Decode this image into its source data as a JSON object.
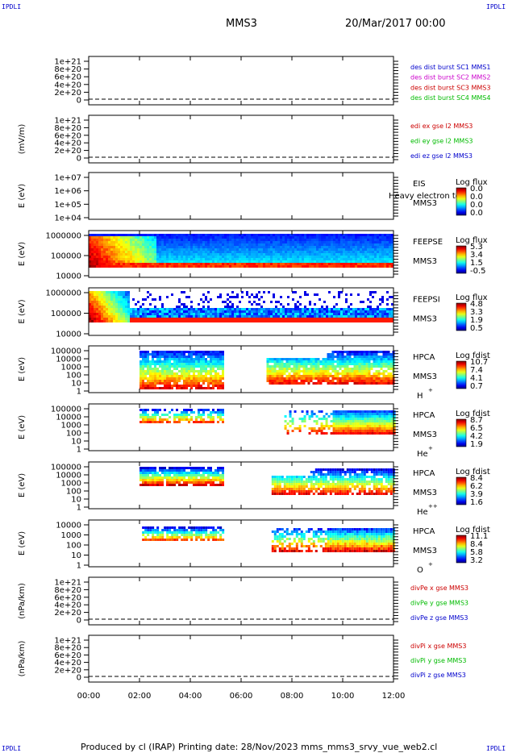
{
  "corner_label": "IPDLI",
  "header": {
    "spacecraft": "MMS3",
    "datetime": "20/Mar/2017 00:00"
  },
  "footer": {
    "text": "Produced by cl (IRAP)   Printing date: 28/Nov/2023   mms_mms3_srvy_vue_web2.cl"
  },
  "chart_data": {
    "type": "heatmap",
    "x_ticks": [
      "00:00",
      "02:00",
      "04:00",
      "06:00",
      "08:00",
      "10:00",
      "12:00"
    ],
    "xlim_hours": [
      0,
      12
    ],
    "panels": [
      {
        "kind": "line",
        "ylabel": "",
        "yticks": [
          "1e+21",
          "8e+20",
          "6e+20",
          "4e+20",
          "2e+20",
          "0"
        ],
        "legend": [
          {
            "text": "des dist burst SC1 MMS1",
            "color": "#0000cc"
          },
          {
            "text": "des dist burst SC2 MMS2",
            "color": "#cc00cc"
          },
          {
            "text": "des dist burst SC3 MMS3",
            "color": "#cc0000"
          },
          {
            "text": "des dist burst SC4 MMS4",
            "color": "#00bb00"
          }
        ]
      },
      {
        "kind": "line",
        "ylabel": "(mV/m)",
        "yticks": [
          "1e+21",
          "8e+20",
          "6e+20",
          "4e+20",
          "2e+20",
          "0"
        ],
        "legend": [
          {
            "text": "edi ex gse l2 MMS3",
            "color": "#cc0000"
          },
          {
            "text": "edi ey gse l2 MMS3",
            "color": "#00bb00"
          },
          {
            "text": "edi ez gse l2 MMS3",
            "color": "#0000cc"
          }
        ]
      },
      {
        "kind": "spec",
        "ylabel": "E (eV)",
        "yticks": [
          "1e+07",
          "1e+06",
          "1e+05",
          "1e+04"
        ],
        "label": [
          "EIS",
          "MMS3"
        ],
        "overlay": "Heavy electron to",
        "cbar_title": "Log flux",
        "cbar_ticks": [
          "0.0",
          "0.0",
          "0.0",
          "0.0"
        ]
      },
      {
        "kind": "spec",
        "ylabel": "E (eV)",
        "yticks": [
          "1000000",
          "100000",
          "10000"
        ],
        "label": [
          "FEEPSE",
          "MMS3"
        ],
        "cbar_title": "Log flux",
        "cbar_ticks": [
          "5.3",
          "3.4",
          "1.5",
          "-0.5"
        ]
      },
      {
        "kind": "spec",
        "ylabel": "E (eV)",
        "yticks": [
          "1000000",
          "100000",
          "10000"
        ],
        "label": [
          "FEEPSI",
          "MMS3"
        ],
        "cbar_title": "Log flux",
        "cbar_ticks": [
          "4.8",
          "3.3",
          "1.9",
          "0.5"
        ]
      },
      {
        "kind": "spec",
        "ylabel": "E (eV)",
        "yticks": [
          "100000",
          "10000",
          "1000",
          "100",
          "10",
          "1"
        ],
        "label": [
          "HPCA",
          "MMS3",
          "H",
          "+"
        ],
        "cbar_title": "Log fdist",
        "cbar_ticks": [
          "10.7",
          "7.4",
          "4.1",
          "0.7"
        ]
      },
      {
        "kind": "spec",
        "ylabel": "E (eV)",
        "yticks": [
          "100000",
          "10000",
          "1000",
          "100",
          "10",
          "1"
        ],
        "label": [
          "HPCA",
          "MMS3",
          "He",
          "+"
        ],
        "cbar_title": "Log fdist",
        "cbar_ticks": [
          "8.7",
          "6.5",
          "4.2",
          "1.9"
        ]
      },
      {
        "kind": "spec",
        "ylabel": "E (eV)",
        "yticks": [
          "100000",
          "10000",
          "1000",
          "100",
          "10",
          "1"
        ],
        "label": [
          "HPCA",
          "MMS3",
          "He",
          "++"
        ],
        "cbar_title": "Log fdist",
        "cbar_ticks": [
          "8.4",
          "6.2",
          "3.9",
          "1.6"
        ]
      },
      {
        "kind": "spec",
        "ylabel": "E (eV)",
        "yticks": [
          "10000",
          "1000",
          "100",
          "10",
          "1"
        ],
        "label": [
          "HPCA",
          "MMS3",
          "O",
          "+"
        ],
        "cbar_title": "Log fdist",
        "cbar_ticks": [
          "11.1",
          "8.4",
          "5.8",
          "3.2"
        ]
      },
      {
        "kind": "line",
        "ylabel": "(nPa/km)",
        "yticks": [
          "1e+21",
          "8e+20",
          "6e+20",
          "4e+20",
          "2e+20",
          "0"
        ],
        "legend": [
          {
            "text": "divPe x gse MMS3",
            "color": "#cc0000"
          },
          {
            "text": "divPe y gse MMS3",
            "color": "#00bb00"
          },
          {
            "text": "divPe z gse MMS3",
            "color": "#0000cc"
          }
        ]
      },
      {
        "kind": "line",
        "ylabel": "(nPa/km)",
        "yticks": [
          "1e+21",
          "8e+20",
          "6e+20",
          "4e+20",
          "2e+20",
          "0"
        ],
        "legend": [
          {
            "text": "divPi x gse MMS3",
            "color": "#cc0000"
          },
          {
            "text": "divPi y gse MMS3",
            "color": "#00bb00"
          },
          {
            "text": "divPi z gse MMS3",
            "color": "#0000cc"
          }
        ]
      }
    ]
  }
}
